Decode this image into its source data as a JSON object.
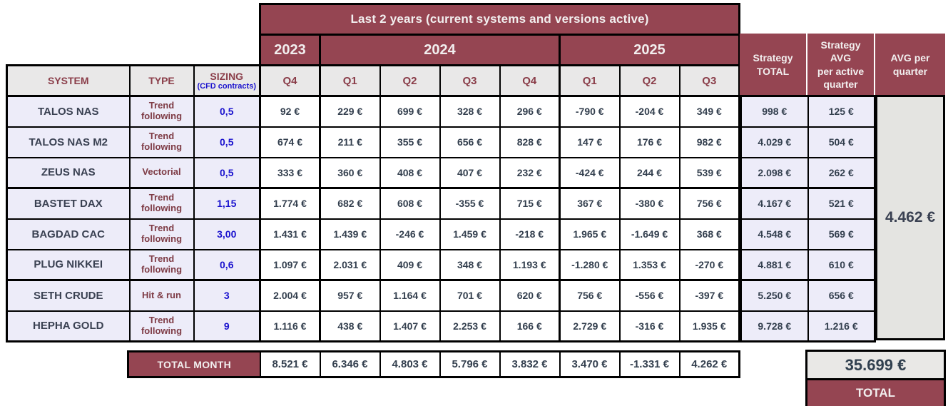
{
  "banner": {
    "title": "Last 2 years (current systems and versions active)"
  },
  "years": [
    {
      "label": "2023",
      "span": 1
    },
    {
      "label": "2024",
      "span": 4
    },
    {
      "label": "2025",
      "span": 3
    }
  ],
  "quarter_headers": [
    "Q4",
    "Q1",
    "Q2",
    "Q3",
    "Q4",
    "Q1",
    "Q2",
    "Q3"
  ],
  "columns": {
    "system": "SYSTEM",
    "type": "TYPE",
    "sizing": "SIZING",
    "sizing_note": "(CFD contracts)"
  },
  "right_columns": {
    "strategy_total": "Strategy\nTOTAL",
    "strategy_avg": "Strategy\nAVG\nper active\nquarter",
    "avg_per_quarter": "AVG per\nquarter"
  },
  "rows": [
    {
      "system": "TALOS NAS",
      "type": "Trend following",
      "sizing": "0,5",
      "values": [
        "92 €",
        "229 €",
        "699 €",
        "328 €",
        "296 €",
        "-790 €",
        "-204 €",
        "349 €"
      ],
      "strategy_total": "998 €",
      "strategy_avg": "125 €"
    },
    {
      "system": "TALOS NAS M2",
      "type": "Trend following",
      "sizing": "0,5",
      "values": [
        "674 €",
        "211 €",
        "355 €",
        "656 €",
        "828 €",
        "147 €",
        "176 €",
        "982 €"
      ],
      "strategy_total": "4.029 €",
      "strategy_avg": "504 €"
    },
    {
      "system": "ZEUS NAS",
      "type": "Vectorial",
      "sizing": "0,5",
      "values": [
        "333 €",
        "360 €",
        "408 €",
        "407 €",
        "232 €",
        "-424 €",
        "244 €",
        "539 €"
      ],
      "strategy_total": "2.098 €",
      "strategy_avg": "262 €"
    },
    {
      "system": "BASTET DAX",
      "type": "Trend following",
      "sizing": "1,15",
      "values": [
        "1.774 €",
        "682 €",
        "608 €",
        "-355 €",
        "715 €",
        "367 €",
        "-380 €",
        "756 €"
      ],
      "strategy_total": "4.167 €",
      "strategy_avg": "521 €"
    },
    {
      "system": "BAGDAD CAC",
      "type": "Trend following",
      "sizing": "3,00",
      "values": [
        "1.431 €",
        "1.439 €",
        "-246 €",
        "1.459 €",
        "-218 €",
        "1.965 €",
        "-1.649 €",
        "368 €"
      ],
      "strategy_total": "4.548 €",
      "strategy_avg": "569 €"
    },
    {
      "system": "PLUG NIKKEI",
      "type": "Trend following",
      "sizing": "0,6",
      "values": [
        "1.097 €",
        "2.031 €",
        "409 €",
        "348 €",
        "1.193 €",
        "-1.280 €",
        "1.353 €",
        "-270 €"
      ],
      "strategy_total": "4.881 €",
      "strategy_avg": "610 €"
    },
    {
      "system": "SETH CRUDE",
      "type": "Hit & run",
      "sizing": "3",
      "values": [
        "2.004 €",
        "957 €",
        "1.164 €",
        "701 €",
        "620 €",
        "756 €",
        "-556 €",
        "-397 €"
      ],
      "strategy_total": "5.250 €",
      "strategy_avg": "656 €"
    },
    {
      "system": "HEPHA GOLD",
      "type": "Trend following",
      "sizing": "9",
      "values": [
        "1.116 €",
        "438 €",
        "1.407 €",
        "2.253 €",
        "166 €",
        "2.729 €",
        "-316 €",
        "1.935 €"
      ],
      "strategy_total": "9.728 €",
      "strategy_avg": "1.216 €"
    }
  ],
  "totals": {
    "label": "TOTAL MONTH",
    "values": [
      "8.521 €",
      "6.346 €",
      "4.803 €",
      "5.796 €",
      "3.832 €",
      "3.470 €",
      "-1.331 €",
      "4.262 €"
    ],
    "avg_per_quarter": "4.462 €",
    "grand_total": "35.699 €",
    "grand_total_label": "TOTAL"
  },
  "colors": {
    "maroon": "#954552",
    "header_gray": "#E9E8E8",
    "row_lavender": "#EDECF9",
    "merged_gray": "#E4E4E1",
    "value_text": "#333F4E",
    "header_text_maroon": "#8A3D49",
    "sizing_blue": "#1A12CE",
    "border_black": "#000000",
    "banner_text": "#F2EFEF"
  }
}
